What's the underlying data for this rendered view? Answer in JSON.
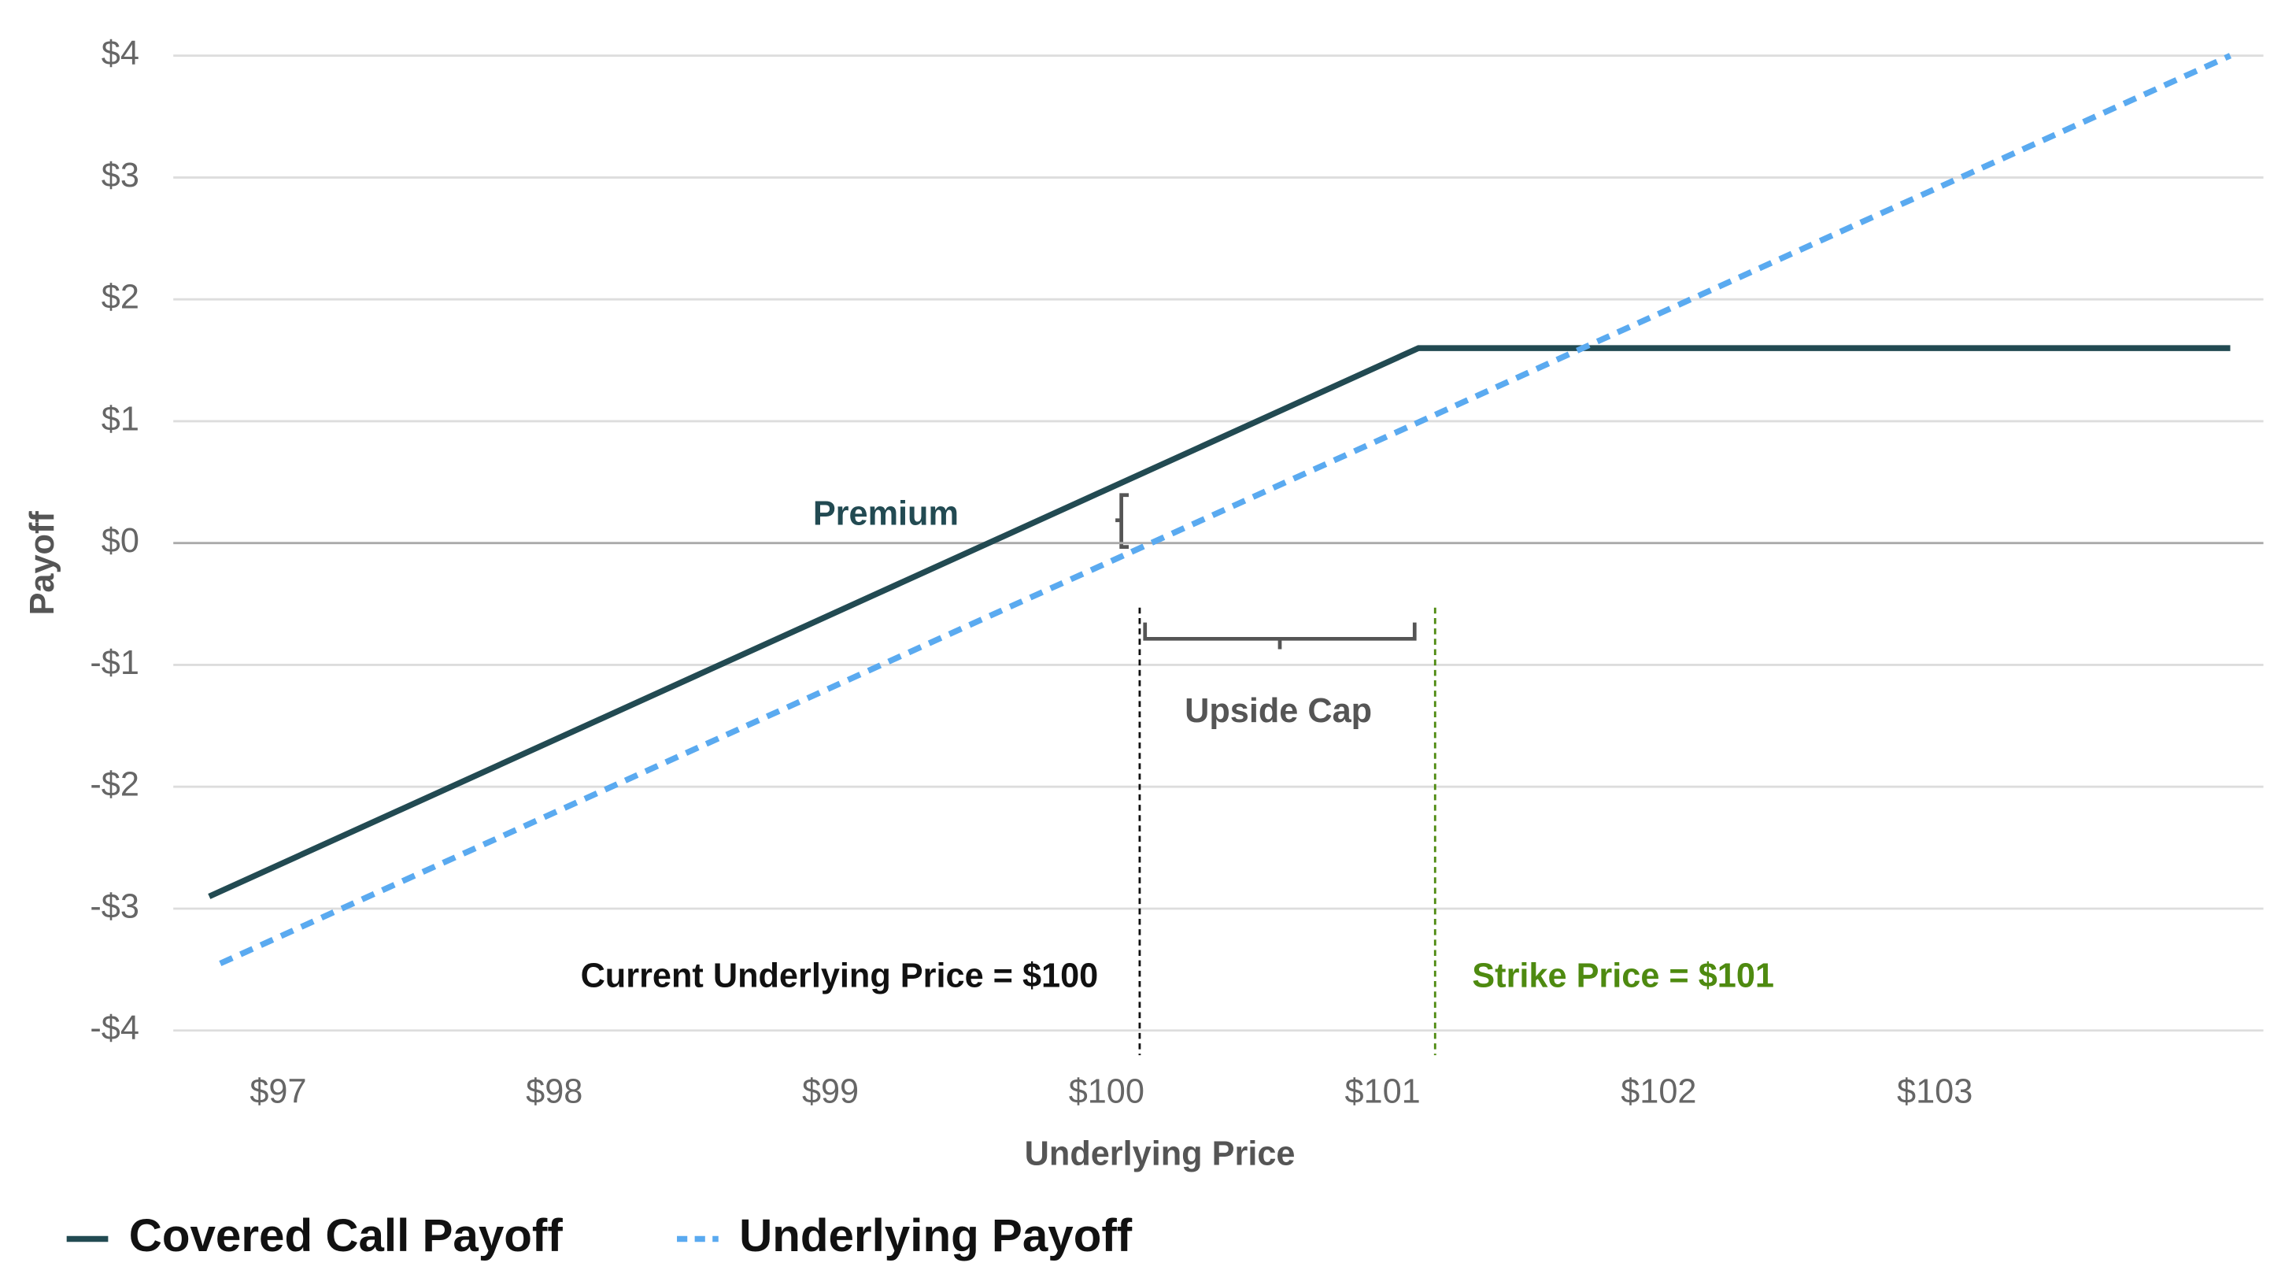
{
  "chart_data": {
    "type": "line",
    "y_label": "Payoff",
    "x_label": "Underlying Price",
    "xlim": [
      96.62,
      104.19
    ],
    "ylim": [
      -4.3,
      4.2
    ],
    "xticks": [
      {
        "value": 97,
        "label": "$97"
      },
      {
        "value": 98,
        "label": "$98"
      },
      {
        "value": 99,
        "label": "$99"
      },
      {
        "value": 100,
        "label": "$100"
      },
      {
        "value": 101,
        "label": "$101"
      },
      {
        "value": 102,
        "label": "$102"
      },
      {
        "value": 103,
        "label": "$103"
      }
    ],
    "yticks": [
      {
        "value": -4,
        "label": "-$4"
      },
      {
        "value": -3,
        "label": "-$3"
      },
      {
        "value": -2,
        "label": "-$2"
      },
      {
        "value": -1,
        "label": "-$1"
      },
      {
        "value": 0,
        "label": "$0"
      },
      {
        "value": 1,
        "label": "$1"
      },
      {
        "value": 2,
        "label": "$2"
      },
      {
        "value": 3,
        "label": "$3"
      },
      {
        "value": 4,
        "label": "$4"
      }
    ],
    "grid": true,
    "series": [
      {
        "name": "Covered Call Payoff",
        "color": "#224a52",
        "dash": false,
        "x": [
          96.75,
          101.13,
          104.07
        ],
        "values": [
          -2.9,
          1.6,
          1.6
        ]
      },
      {
        "name": "Underlying Payoff",
        "color": "#5aaaf0",
        "dash": true,
        "x": [
          96.79,
          104.07
        ],
        "values": [
          -3.45,
          4.0
        ]
      }
    ],
    "reference_lines": [
      {
        "label": "Current Underlying Price = $100",
        "x": 100.12,
        "color": "#111111"
      },
      {
        "label": "Strike Price = $101",
        "x": 101.19,
        "color": "#4e8a10"
      }
    ],
    "annotations": [
      "Premium",
      "Upside Cap"
    ]
  }
}
